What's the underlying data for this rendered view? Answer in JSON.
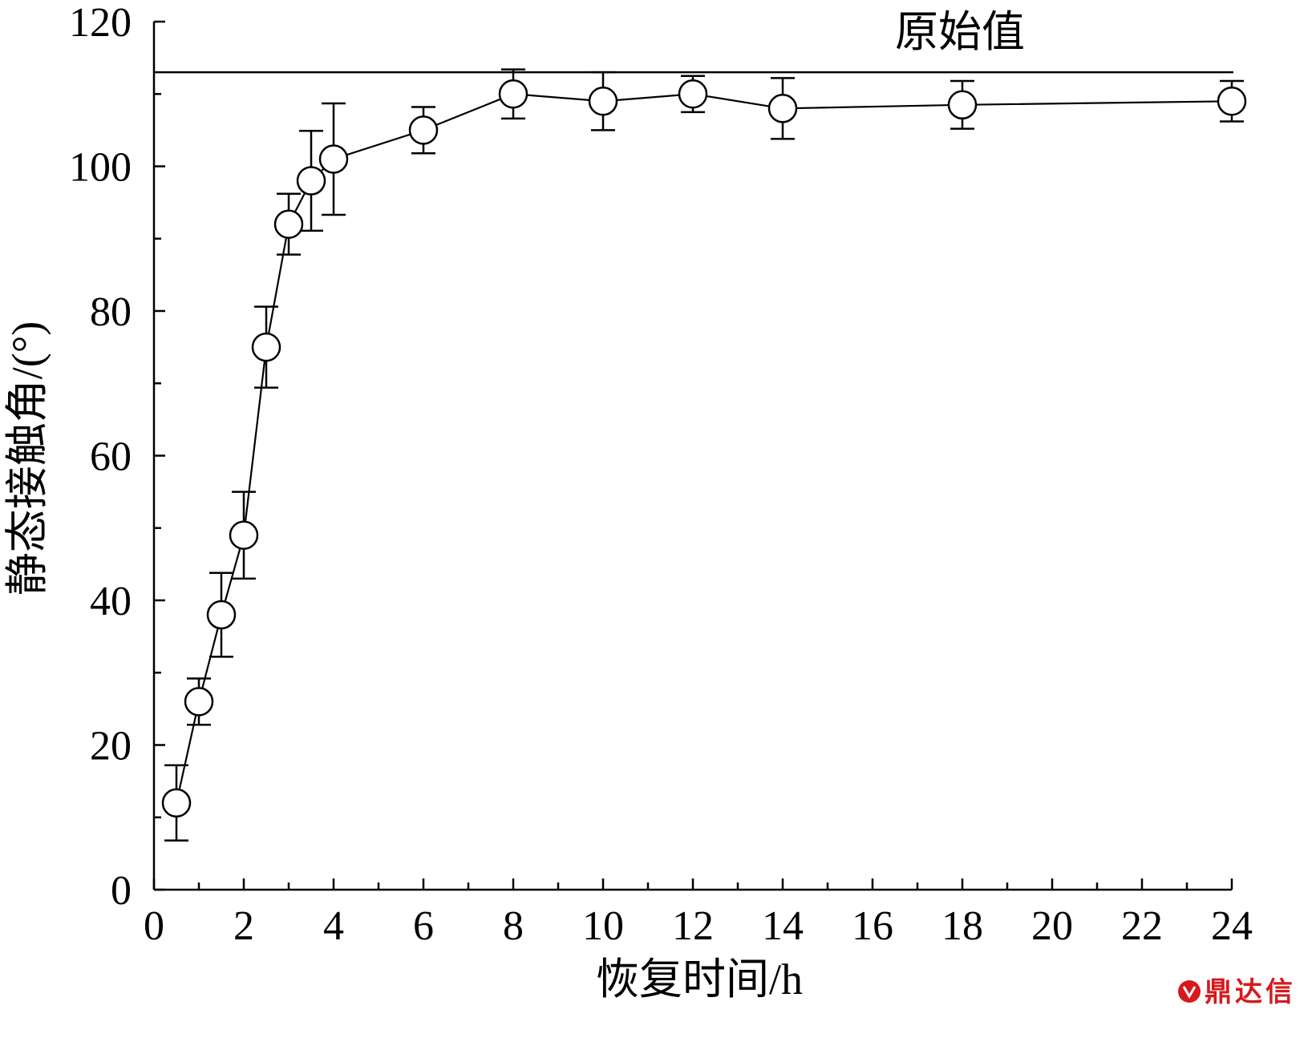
{
  "chart_data": {
    "type": "line",
    "xlabel": "恢复时间/h",
    "ylabel": "静态接触角/(°)",
    "xlim": [
      0,
      24
    ],
    "ylim": [
      0,
      120
    ],
    "x_ticks": [
      0,
      2,
      4,
      6,
      8,
      10,
      12,
      14,
      16,
      18,
      20,
      22,
      24
    ],
    "y_ticks": [
      0,
      20,
      40,
      60,
      80,
      100,
      120
    ],
    "x": [
      0.5,
      1,
      1.5,
      2,
      2.5,
      3,
      3.5,
      4,
      6,
      8,
      10,
      12,
      14,
      18,
      24
    ],
    "series": [
      {
        "values": [
          12,
          26,
          38,
          49,
          75,
          92,
          98,
          101,
          105,
          110,
          109,
          110,
          108,
          108.5,
          109
        ],
        "error": [
          5.2,
          3.2,
          5.8,
          6,
          5.6,
          4.2,
          6.9,
          7.7,
          3.2,
          3.4,
          4,
          2.5,
          4.2,
          3.3,
          2.8
        ],
        "marker": "open-circle",
        "color": "#000000"
      }
    ],
    "reference_line": {
      "label": "原始值",
      "value": 113
    },
    "grid": false,
    "legend": "none"
  },
  "watermark": {
    "text": "鼎达信",
    "color": "#d7191c"
  }
}
